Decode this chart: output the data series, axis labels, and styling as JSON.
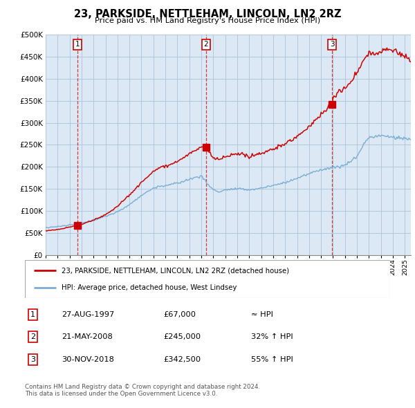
{
  "title": "23, PARKSIDE, NETTLEHAM, LINCOLN, LN2 2RZ",
  "subtitle": "Price paid vs. HM Land Registry's House Price Index (HPI)",
  "xlim": [
    1995.0,
    2025.5
  ],
  "ylim": [
    0,
    500000
  ],
  "yticks": [
    0,
    50000,
    100000,
    150000,
    200000,
    250000,
    300000,
    350000,
    400000,
    450000,
    500000
  ],
  "ytick_labels": [
    "£0",
    "£50K",
    "£100K",
    "£150K",
    "£200K",
    "£250K",
    "£300K",
    "£350K",
    "£400K",
    "£450K",
    "£500K"
  ],
  "sale_dates_num": [
    1997.648,
    2008.384,
    2018.915
  ],
  "sale_prices": [
    67000,
    245000,
    342500
  ],
  "sale_labels": [
    "1",
    "2",
    "3"
  ],
  "property_color": "#cc0000",
  "hpi_color": "#7aadd4",
  "plot_bg_color": "#dce9f5",
  "grid_color": "#b0c8e0",
  "legend_property": "23, PARKSIDE, NETTLEHAM, LINCOLN, LN2 2RZ (detached house)",
  "legend_hpi": "HPI: Average price, detached house, West Lindsey",
  "table_rows": [
    [
      "1",
      "27-AUG-1997",
      "£67,000",
      "≈ HPI"
    ],
    [
      "2",
      "21-MAY-2008",
      "£245,000",
      "32% ↑ HPI"
    ],
    [
      "3",
      "30-NOV-2018",
      "£342,500",
      "55% ↑ HPI"
    ]
  ],
  "footnote": "Contains HM Land Registry data © Crown copyright and database right 2024.\nThis data is licensed under the Open Government Licence v3.0."
}
